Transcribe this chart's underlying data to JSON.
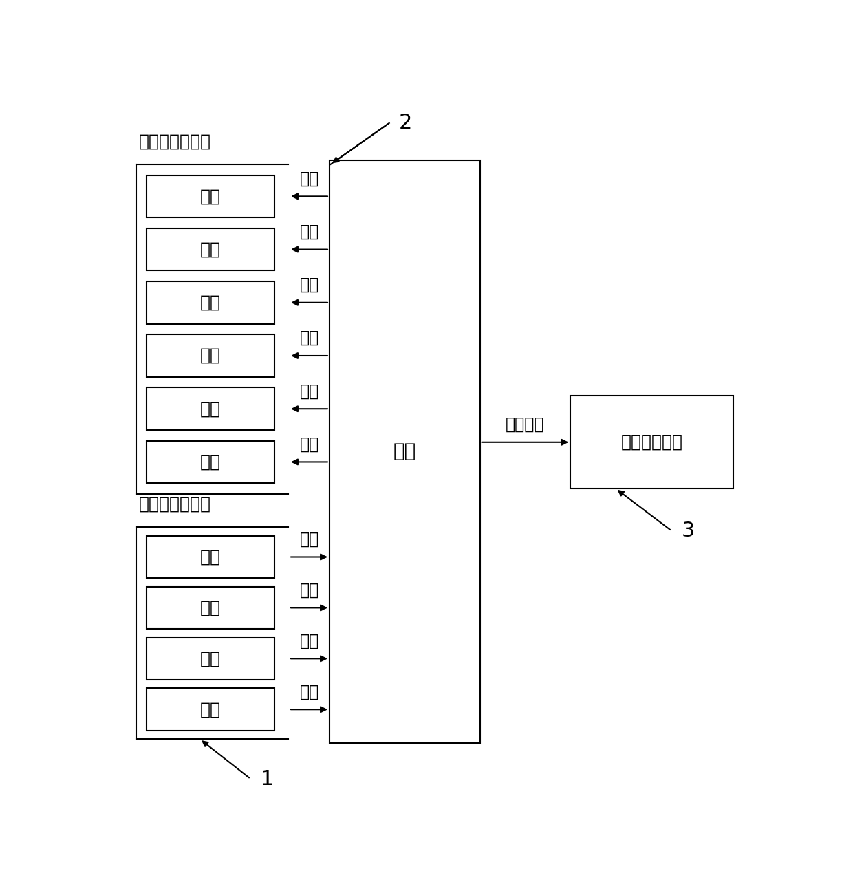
{
  "bg_color": "#ffffff",
  "line_color": "#000000",
  "lw": 1.5,
  "photo_module_label": "光敏二极管模块",
  "led_module_label": "发光二极管模块",
  "wrist_label": "手腕",
  "sensor_module_label": "六轴传感模块",
  "position_label": "位置感应",
  "photo_cells": [
    "绿光",
    "绿光",
    "红光",
    "红外",
    "绿光",
    "绿光"
  ],
  "led_cells": [
    "绿光",
    "红光",
    "红外",
    "绿光"
  ],
  "photo_arrow_labels": [
    "反射",
    "反射",
    "反射",
    "反射",
    "反射",
    "反射"
  ],
  "led_arrow_labels": [
    "发射",
    "发射",
    "发射",
    "发射"
  ],
  "label_1": "1",
  "label_2": "2",
  "label_3": "3",
  "font_size_cell": 18,
  "font_size_module": 18,
  "font_size_arrow": 17,
  "font_size_number": 22,
  "font_size_wrist": 20
}
